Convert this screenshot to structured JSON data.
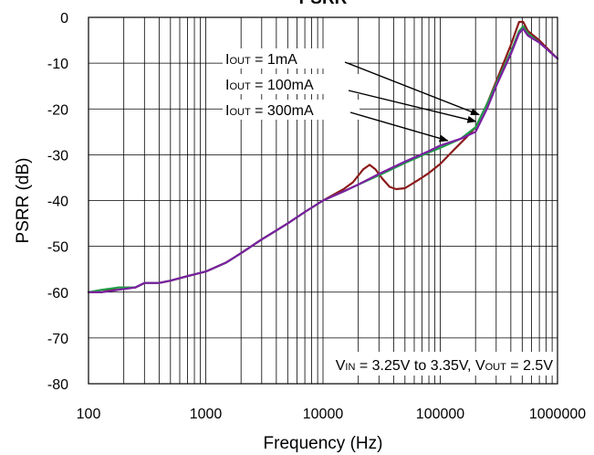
{
  "chart_data": {
    "type": "line",
    "title": "PSRR",
    "xlabel": "Frequency (Hz)",
    "ylabel": "PSRR (dB)",
    "x_scale": "log",
    "xlim": [
      100,
      1000000
    ],
    "ylim": [
      -80,
      0
    ],
    "grid": true,
    "x_ticks": [
      100,
      1000,
      10000,
      100000,
      1000000
    ],
    "x_tick_labels": [
      "100",
      "1000",
      "10000",
      "100000",
      "1000000"
    ],
    "y_ticks": [
      0,
      -10,
      -20,
      -30,
      -40,
      -50,
      -60,
      -70,
      -80
    ],
    "y_tick_labels": [
      "0",
      "-10",
      "-20",
      "-30",
      "-40",
      "-50",
      "-60",
      "-70",
      "-80"
    ],
    "annotation": {
      "parts": [
        {
          "text": "V",
          "sub": false
        },
        {
          "text": "IN",
          "sub": true
        },
        {
          "text": " = 3.25V to 3.35V, V",
          "sub": false
        },
        {
          "text": "OUT",
          "sub": true
        },
        {
          "text": " = 2.5V",
          "sub": false
        }
      ]
    },
    "series": [
      {
        "name": "IOUT = 1mA",
        "label_parts": [
          {
            "text": "I",
            "sub": false
          },
          {
            "text": "OUT",
            "sub": true
          },
          {
            "text": " = 1mA",
            "sub": false
          }
        ],
        "color": "#8B1A1A",
        "label_color": "#C2185B",
        "points": [
          [
            100,
            -60
          ],
          [
            130,
            -60
          ],
          [
            180,
            -59
          ],
          [
            250,
            -59
          ],
          [
            300,
            -58
          ],
          [
            400,
            -58
          ],
          [
            500,
            -57.5
          ],
          [
            700,
            -56.5
          ],
          [
            1000,
            -55.5
          ],
          [
            1500,
            -53.5
          ],
          [
            2000,
            -51.5
          ],
          [
            3000,
            -48.5
          ],
          [
            5000,
            -45
          ],
          [
            7000,
            -42.5
          ],
          [
            10000,
            -40
          ],
          [
            15000,
            -37.5
          ],
          [
            18000,
            -36
          ],
          [
            22000,
            -33.2
          ],
          [
            25000,
            -32.2
          ],
          [
            28000,
            -33.2
          ],
          [
            32000,
            -35.2
          ],
          [
            37000,
            -37
          ],
          [
            42000,
            -37.5
          ],
          [
            50000,
            -37.3
          ],
          [
            65000,
            -35.5
          ],
          [
            80000,
            -34
          ],
          [
            100000,
            -32
          ],
          [
            130000,
            -29
          ],
          [
            170000,
            -26
          ],
          [
            200000,
            -24
          ],
          [
            250000,
            -19
          ],
          [
            300000,
            -14
          ],
          [
            400000,
            -6
          ],
          [
            470000,
            -1
          ],
          [
            510000,
            -1
          ],
          [
            560000,
            -3
          ],
          [
            700000,
            -5
          ],
          [
            1000000,
            -9
          ]
        ]
      },
      {
        "name": "IOUT = 100mA",
        "label_parts": [
          {
            "text": "I",
            "sub": false
          },
          {
            "text": "OUT",
            "sub": true
          },
          {
            "text": " = 100mA",
            "sub": false
          }
        ],
        "color": "#1E9E48",
        "label_color": "#1E9E48",
        "points": [
          [
            100,
            -60
          ],
          [
            130,
            -59.5
          ],
          [
            180,
            -59
          ],
          [
            250,
            -59
          ],
          [
            300,
            -58
          ],
          [
            400,
            -58
          ],
          [
            500,
            -57.5
          ],
          [
            700,
            -56.5
          ],
          [
            1000,
            -55.5
          ],
          [
            1500,
            -53.5
          ],
          [
            2000,
            -51.5
          ],
          [
            3000,
            -48.5
          ],
          [
            5000,
            -45
          ],
          [
            7000,
            -42.5
          ],
          [
            10000,
            -40
          ],
          [
            15000,
            -38
          ],
          [
            20000,
            -36.5
          ],
          [
            30000,
            -34.5
          ],
          [
            50000,
            -31.8
          ],
          [
            80000,
            -29.5
          ],
          [
            100000,
            -28.5
          ],
          [
            150000,
            -26.5
          ],
          [
            200000,
            -24
          ],
          [
            250000,
            -19
          ],
          [
            300000,
            -14.5
          ],
          [
            400000,
            -7.5
          ],
          [
            470000,
            -3
          ],
          [
            510000,
            -2
          ],
          [
            560000,
            -3.5
          ],
          [
            700000,
            -5.5
          ],
          [
            1000000,
            -9
          ]
        ]
      },
      {
        "name": "IOUT = 300mA",
        "label_parts": [
          {
            "text": "I",
            "sub": false
          },
          {
            "text": "OUT",
            "sub": true
          },
          {
            "text": " = 300mA",
            "sub": false
          }
        ],
        "color": "#7B1FA2",
        "label_color": "#9C27B0",
        "points": [
          [
            100,
            -60
          ],
          [
            130,
            -60
          ],
          [
            180,
            -59.5
          ],
          [
            250,
            -59
          ],
          [
            300,
            -58
          ],
          [
            400,
            -58
          ],
          [
            500,
            -57.5
          ],
          [
            700,
            -56.5
          ],
          [
            1000,
            -55.5
          ],
          [
            1500,
            -53.5
          ],
          [
            2000,
            -51.5
          ],
          [
            3000,
            -48.5
          ],
          [
            5000,
            -45
          ],
          [
            7000,
            -42.5
          ],
          [
            10000,
            -40
          ],
          [
            15000,
            -38
          ],
          [
            20000,
            -36.5
          ],
          [
            30000,
            -34.2
          ],
          [
            50000,
            -31.5
          ],
          [
            80000,
            -29.2
          ],
          [
            100000,
            -28
          ],
          [
            150000,
            -26.5
          ],
          [
            200000,
            -25
          ],
          [
            250000,
            -20
          ],
          [
            300000,
            -15
          ],
          [
            400000,
            -8
          ],
          [
            470000,
            -3.5
          ],
          [
            510000,
            -2.5
          ],
          [
            560000,
            -4
          ],
          [
            700000,
            -5.5
          ],
          [
            1000000,
            -9
          ]
        ]
      }
    ]
  }
}
